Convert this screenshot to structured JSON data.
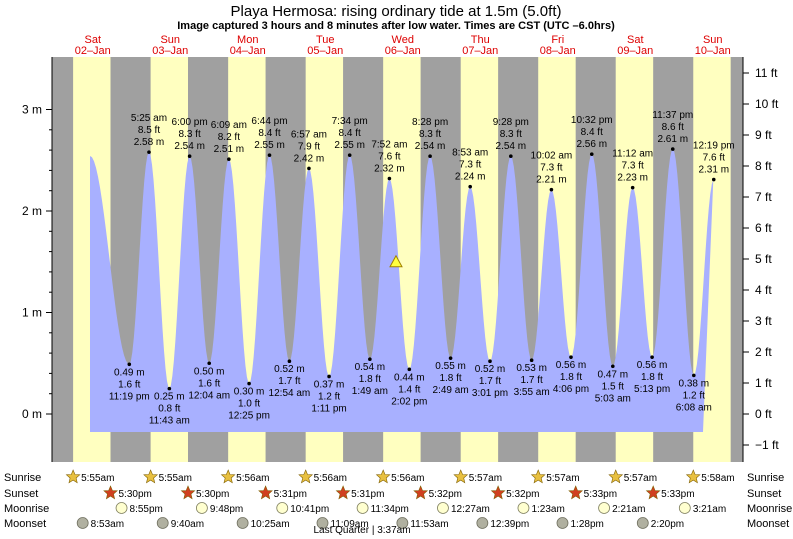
{
  "title": "Playa Hermosa: rising  ordinary tide at 1.5m (5.0ft)",
  "subtitle": "Image captured 3 hours and 8 minutes after low water. Times are CST (UTC –6.0hrs)",
  "colors": {
    "night": "#a0a0a0",
    "day": "#ffffc0",
    "tide": "#a8b0ff",
    "day_label": "#dd0000",
    "sun_icon": "#e8c040",
    "sunset_icon": "#d04020",
    "moonrise_icon": "#ffffd0",
    "moonset_icon": "#b0b0a0"
  },
  "days": [
    {
      "dow": "Sat",
      "date": "02–Jan"
    },
    {
      "dow": "Sun",
      "date": "03–Jan"
    },
    {
      "dow": "Mon",
      "date": "04–Jan"
    },
    {
      "dow": "Tue",
      "date": "05–Jan"
    },
    {
      "dow": "Wed",
      "date": "06–Jan"
    },
    {
      "dow": "Thu",
      "date": "07–Jan"
    },
    {
      "dow": "Fri",
      "date": "08–Jan"
    },
    {
      "dow": "Sat",
      "date": "09–Jan"
    },
    {
      "dow": "Sun",
      "date": "10–Jan"
    }
  ],
  "chart_data": {
    "type": "area",
    "y_left_unit": "m",
    "y_left_ticks": [
      "0 m",
      "1 m",
      "2 m",
      "3 m"
    ],
    "y_right_ticks": [
      "−1 ft",
      "0 ft",
      "1 ft",
      "2 ft",
      "3 ft",
      "4 ft",
      "5 ft",
      "6 ft",
      "7 ft",
      "8 ft",
      "9 ft",
      "10 ft",
      "11 ft"
    ],
    "current_level_m": 1.5,
    "extremes": [
      {
        "type": "low",
        "day": 0,
        "time": "11:19 pm",
        "m": "0.49 m",
        "ft": "1.6 ft",
        "v": 0.49
      },
      {
        "type": "high",
        "day": 1,
        "time": "5:25 am",
        "m": "2.58 m",
        "ft": "8.5 ft",
        "v": 2.58
      },
      {
        "type": "low",
        "day": 1,
        "time": "11:43 am",
        "m": "0.25 m",
        "ft": "0.8 ft",
        "v": 0.25
      },
      {
        "type": "high",
        "day": 1,
        "time": "6:00 pm",
        "m": "2.54 m",
        "ft": "8.3 ft",
        "v": 2.54
      },
      {
        "type": "low",
        "day": 2,
        "time": "12:04 am",
        "m": "0.50 m",
        "ft": "1.6 ft",
        "v": 0.5
      },
      {
        "type": "high",
        "day": 2,
        "time": "6:09 am",
        "m": "2.51 m",
        "ft": "8.2 ft",
        "v": 2.51
      },
      {
        "type": "low",
        "day": 2,
        "time": "12:25 pm",
        "m": "0.30 m",
        "ft": "1.0 ft",
        "v": 0.3
      },
      {
        "type": "high",
        "day": 2,
        "time": "6:44 pm",
        "m": "2.55 m",
        "ft": "8.4 ft",
        "v": 2.55
      },
      {
        "type": "low",
        "day": 3,
        "time": "12:54 am",
        "m": "0.52 m",
        "ft": "1.7 ft",
        "v": 0.52
      },
      {
        "type": "high",
        "day": 3,
        "time": "6:57 am",
        "m": "2.42 m",
        "ft": "7.9 ft",
        "v": 2.42
      },
      {
        "type": "low",
        "day": 3,
        "time": "1:11 pm",
        "m": "0.37 m",
        "ft": "1.2 ft",
        "v": 0.37
      },
      {
        "type": "high",
        "day": 3,
        "time": "7:34 pm",
        "m": "2.55 m",
        "ft": "8.4 ft",
        "v": 2.55
      },
      {
        "type": "low",
        "day": 4,
        "time": "1:49 am",
        "m": "0.54 m",
        "ft": "1.8 ft",
        "v": 0.54
      },
      {
        "type": "high",
        "day": 4,
        "time": "7:52 am",
        "m": "2.32 m",
        "ft": "7.6 ft",
        "v": 2.32
      },
      {
        "type": "low",
        "day": 4,
        "time": "2:02 pm",
        "m": "0.44 m",
        "ft": "1.4 ft",
        "v": 0.44
      },
      {
        "type": "high",
        "day": 4,
        "time": "8:28 pm",
        "m": "2.54 m",
        "ft": "8.3 ft",
        "v": 2.54
      },
      {
        "type": "low",
        "day": 5,
        "time": "2:49 am",
        "m": "0.55 m",
        "ft": "1.8 ft",
        "v": 0.55
      },
      {
        "type": "high",
        "day": 5,
        "time": "8:53 am",
        "m": "2.24 m",
        "ft": "7.3 ft",
        "v": 2.24
      },
      {
        "type": "low",
        "day": 5,
        "time": "3:01 pm",
        "m": "0.52 m",
        "ft": "1.7 ft",
        "v": 0.52
      },
      {
        "type": "high",
        "day": 5,
        "time": "9:28 pm",
        "m": "2.54 m",
        "ft": "8.3 ft",
        "v": 2.54
      },
      {
        "type": "low",
        "day": 6,
        "time": "3:55 am",
        "m": "0.53 m",
        "ft": "1.7 ft",
        "v": 0.53
      },
      {
        "type": "high",
        "day": 6,
        "time": "10:02 am",
        "m": "2.21 m",
        "ft": "7.3 ft",
        "v": 2.21
      },
      {
        "type": "low",
        "day": 6,
        "time": "4:06 pm",
        "m": "0.56 m",
        "ft": "1.8 ft",
        "v": 0.56
      },
      {
        "type": "high",
        "day": 6,
        "time": "10:32 pm",
        "m": "2.56 m",
        "ft": "8.4 ft",
        "v": 2.56
      },
      {
        "type": "low",
        "day": 7,
        "time": "5:03 am",
        "m": "0.47 m",
        "ft": "1.5 ft",
        "v": 0.47
      },
      {
        "type": "high",
        "day": 7,
        "time": "11:12 am",
        "m": "2.23 m",
        "ft": "7.3 ft",
        "v": 2.23
      },
      {
        "type": "low",
        "day": 7,
        "time": "5:13 pm",
        "m": "0.56 m",
        "ft": "1.8 ft",
        "v": 0.56
      },
      {
        "type": "high",
        "day": 7,
        "time": "11:37 pm",
        "m": "2.61 m",
        "ft": "8.6 ft",
        "v": 2.61
      },
      {
        "type": "low",
        "day": 8,
        "time": "6:08 am",
        "m": "0.38 m",
        "ft": "1.2 ft",
        "v": 0.38
      },
      {
        "type": "high",
        "day": 8,
        "time": "12:19 pm",
        "m": "2.31 m",
        "ft": "7.6 ft",
        "v": 2.31
      }
    ]
  },
  "astro": {
    "row_labels": [
      "Sunrise",
      "Sunset",
      "Moonrise",
      "Moonset"
    ],
    "sunrise": [
      {
        "day": 0,
        "time": "5:55am"
      },
      {
        "day": 1,
        "time": "5:55am"
      },
      {
        "day": 2,
        "time": "5:56am"
      },
      {
        "day": 3,
        "time": "5:56am"
      },
      {
        "day": 4,
        "time": "5:56am"
      },
      {
        "day": 5,
        "time": "5:57am"
      },
      {
        "day": 6,
        "time": "5:57am"
      },
      {
        "day": 7,
        "time": "5:57am"
      },
      {
        "day": 8,
        "time": "5:58am"
      }
    ],
    "sunset": [
      {
        "day": 0,
        "time": "5:30pm"
      },
      {
        "day": 1,
        "time": "5:30pm"
      },
      {
        "day": 2,
        "time": "5:31pm"
      },
      {
        "day": 3,
        "time": "5:31pm"
      },
      {
        "day": 4,
        "time": "5:32pm"
      },
      {
        "day": 5,
        "time": "5:32pm"
      },
      {
        "day": 6,
        "time": "5:33pm"
      },
      {
        "day": 7,
        "time": "5:33pm"
      }
    ],
    "moonrise": [
      {
        "day": 0,
        "time": "8:55pm"
      },
      {
        "day": 1,
        "time": "9:48pm"
      },
      {
        "day": 2,
        "time": "10:41pm"
      },
      {
        "day": 3,
        "time": "11:34pm"
      },
      {
        "day": 5,
        "time": "12:27am"
      },
      {
        "day": 6,
        "time": "1:23am"
      },
      {
        "day": 7,
        "time": "2:21am"
      },
      {
        "day": 8,
        "time": "3:21am"
      }
    ],
    "moonset": [
      {
        "day": 0,
        "time": "8:53am"
      },
      {
        "day": 1,
        "time": "9:40am"
      },
      {
        "day": 2,
        "time": "10:25am"
      },
      {
        "day": 3,
        "time": "11:09am"
      },
      {
        "day": 4,
        "time": "11:53am"
      },
      {
        "day": 5,
        "time": "12:39pm"
      },
      {
        "day": 6,
        "time": "1:28pm"
      },
      {
        "day": 7,
        "time": "2:20pm"
      }
    ],
    "moon_phase": "Last Quarter | 3:37am"
  }
}
